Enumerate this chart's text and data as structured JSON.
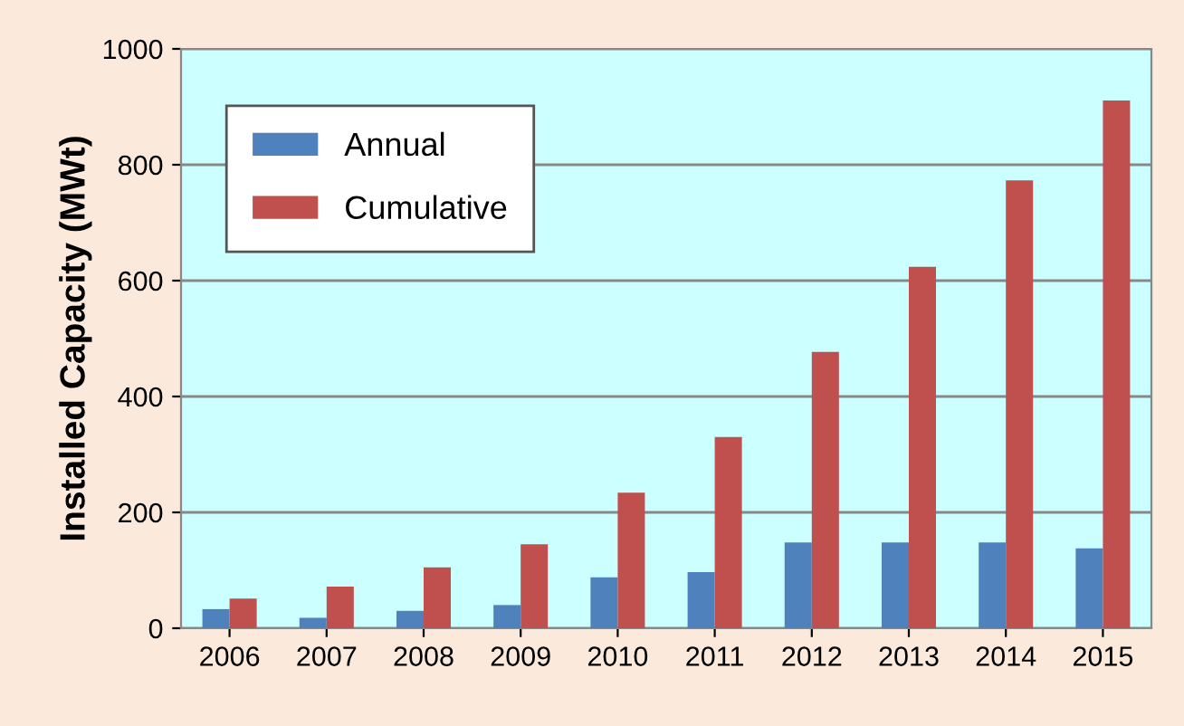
{
  "chart_data": {
    "type": "bar",
    "ylabel": "Installed Capacity (MWt)",
    "categories": [
      "2006",
      "2007",
      "2008",
      "2009",
      "2010",
      "2011",
      "2012",
      "2013",
      "2014",
      "2015"
    ],
    "series": [
      {
        "name": "Annual",
        "color": "#4f81bd",
        "values": [
          33,
          18,
          30,
          40,
          88,
          97,
          148,
          148,
          148,
          138
        ]
      },
      {
        "name": "Cumulative",
        "color": "#c0504d",
        "values": [
          51,
          72,
          105,
          145,
          234,
          330,
          477,
          624,
          773,
          911
        ]
      }
    ],
    "ylim": [
      0,
      1000
    ],
    "yticks": [
      0,
      200,
      400,
      600,
      800,
      1000
    ],
    "grid": "y",
    "legend": "top left"
  }
}
